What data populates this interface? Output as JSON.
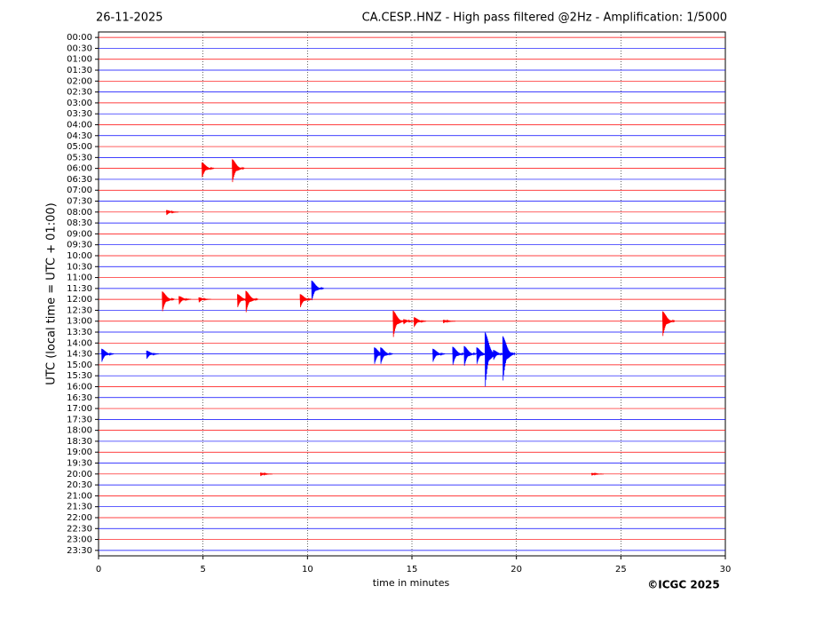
{
  "chart_data": {
    "type": "helicorder",
    "title": "CA.CESP..HNZ - High pass filtered @2Hz - Amplification: 1/5000",
    "date": "26-11-2025",
    "x_label": "time in minutes",
    "y_label": "UTC (local time = UTC + 01:00)",
    "credit": "©ICGC 2025",
    "categories": [
      "00:00",
      "00:30",
      "01:00",
      "01:30",
      "02:00",
      "02:30",
      "03:00",
      "03:30",
      "04:00",
      "04:30",
      "05:00",
      "05:30",
      "06:00",
      "06:30",
      "07:00",
      "07:30",
      "08:00",
      "08:30",
      "09:00",
      "09:30",
      "10:00",
      "10:30",
      "11:00",
      "11:30",
      "12:00",
      "12:30",
      "13:00",
      "13:30",
      "14:00",
      "14:30",
      "15:00",
      "15:30",
      "16:00",
      "16:30",
      "17:00",
      "17:30",
      "18:00",
      "18:30",
      "19:00",
      "19:30",
      "20:00",
      "20:30",
      "21:00",
      "21:30",
      "22:00",
      "22:30",
      "23:00",
      "23:30"
    ],
    "trace_colors": [
      "#ff0000",
      "#0000ff"
    ],
    "xlim": [
      0,
      30
    ],
    "xticks": [
      0,
      5,
      10,
      15,
      20,
      25,
      30
    ],
    "grid": true,
    "bursts": [
      {
        "y": "06:00",
        "x": 4.95,
        "amplitude": 0.9
      },
      {
        "y": "06:00",
        "x": 6.4,
        "amplitude": 1.4
      },
      {
        "y": "08:00",
        "x": 3.25,
        "amplitude": 0.3
      },
      {
        "y": "11:30",
        "x": 10.2,
        "amplitude": 1.2
      },
      {
        "y": "12:00",
        "x": 3.05,
        "amplitude": 1.2
      },
      {
        "y": "12:00",
        "x": 3.85,
        "amplitude": 0.5
      },
      {
        "y": "12:00",
        "x": 4.8,
        "amplitude": 0.3
      },
      {
        "y": "12:00",
        "x": 6.65,
        "amplitude": 0.8
      },
      {
        "y": "12:00",
        "x": 7.05,
        "amplitude": 1.3
      },
      {
        "y": "12:00",
        "x": 9.65,
        "amplitude": 0.8
      },
      {
        "y": "13:00",
        "x": 14.1,
        "amplitude": 1.6
      },
      {
        "y": "13:00",
        "x": 14.6,
        "amplitude": 0.3
      },
      {
        "y": "13:00",
        "x": 15.1,
        "amplitude": 0.6
      },
      {
        "y": "13:00",
        "x": 16.5,
        "amplitude": 0.2
      },
      {
        "y": "13:00",
        "x": 27.0,
        "amplitude": 1.5
      },
      {
        "y": "14:30",
        "x": 0.15,
        "amplitude": 0.8
      },
      {
        "y": "14:30",
        "x": 2.3,
        "amplitude": 0.5
      },
      {
        "y": "14:30",
        "x": 13.2,
        "amplitude": 1.0
      },
      {
        "y": "14:30",
        "x": 13.5,
        "amplitude": 1.0
      },
      {
        "y": "14:30",
        "x": 16.0,
        "amplitude": 0.8
      },
      {
        "y": "14:30",
        "x": 16.95,
        "amplitude": 1.1
      },
      {
        "y": "14:30",
        "x": 17.5,
        "amplitude": 1.2
      },
      {
        "y": "14:30",
        "x": 18.1,
        "amplitude": 1.0
      },
      {
        "y": "14:30",
        "x": 18.5,
        "amplitude": 3.3
      },
      {
        "y": "14:30",
        "x": 18.9,
        "amplitude": 0.6
      },
      {
        "y": "14:30",
        "x": 19.35,
        "amplitude": 2.7
      },
      {
        "y": "20:00",
        "x": 7.75,
        "amplitude": 0.2
      },
      {
        "y": "20:00",
        "x": 23.6,
        "amplitude": 0.15
      }
    ]
  }
}
